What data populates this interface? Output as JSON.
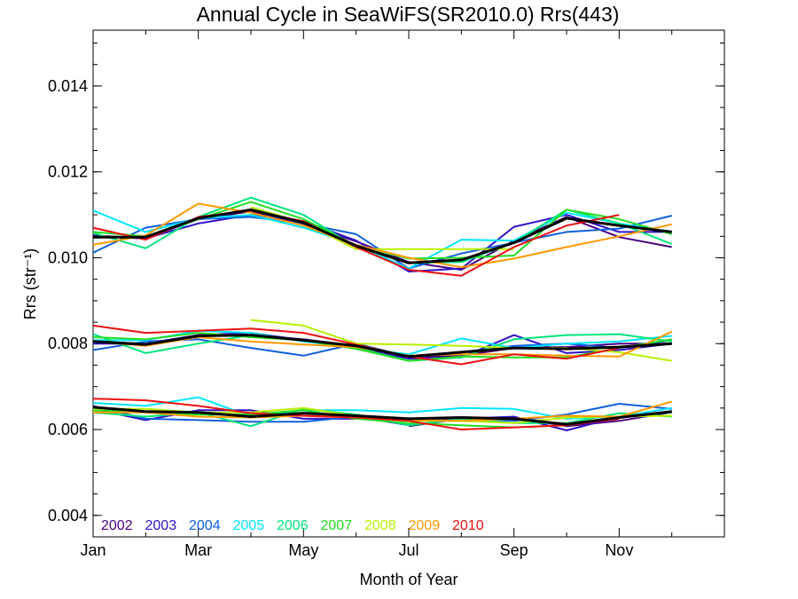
{
  "chart_data": {
    "type": "line",
    "title": "Annual Cycle in SeaWiFS(SR2010.0) Rrs(443)",
    "xlabel": "Month of Year",
    "ylabel": "Rrs (str⁻¹)",
    "xlim": [
      1,
      13
    ],
    "ylim": [
      0.0035,
      0.0153
    ],
    "x_ticks": [
      {
        "value": 1,
        "label": "Jan"
      },
      {
        "value": 3,
        "label": "Mar"
      },
      {
        "value": 5,
        "label": "May"
      },
      {
        "value": 7,
        "label": "Jul"
      },
      {
        "value": 9,
        "label": "Sep"
      },
      {
        "value": 11,
        "label": "Nov"
      }
    ],
    "x_minor_ticks": [
      2,
      4,
      6,
      8,
      10,
      12,
      13
    ],
    "y_ticks": [
      {
        "value": 0.004,
        "label": "0.004"
      },
      {
        "value": 0.006,
        "label": "0.006"
      },
      {
        "value": 0.008,
        "label": "0.008"
      },
      {
        "value": 0.01,
        "label": "0.010"
      },
      {
        "value": 0.012,
        "label": "0.012"
      },
      {
        "value": 0.014,
        "label": "0.014"
      }
    ],
    "y_minor_step": 0.0005,
    "x": [
      1,
      2,
      3,
      4,
      5,
      6,
      7,
      8,
      9,
      10,
      11,
      12
    ],
    "legend_position": "bottom-left",
    "series": [
      {
        "name": "2002",
        "color": "#4b0082",
        "groups": [
          [
            0.01052,
            0.01045,
            0.0109,
            0.01108,
            0.01078,
            0.01038,
            0.0099,
            0.00972,
            0.0104,
            0.01095,
            0.01048,
            0.01025
          ],
          [
            0.00805,
            0.008,
            0.0082,
            0.0082,
            0.0081,
            0.00795,
            0.00768,
            0.00772,
            0.0079,
            0.00792,
            0.008,
            0.008
          ],
          [
            null,
            null,
            null,
            null,
            null,
            null,
            0.00608,
            0.00625,
            0.00628,
            0.00608,
            0.0062,
            0.0064
          ]
        ]
      },
      {
        "name": "2003",
        "color": "#3010cc",
        "groups": [
          [
            0.0105,
            0.01045,
            0.0108,
            0.011,
            0.01085,
            0.0104,
            0.00968,
            0.00975,
            0.01072,
            0.011,
            0.0106,
            0.0106
          ],
          [
            0.008,
            0.008,
            0.0082,
            0.00825,
            0.00808,
            0.0079,
            0.00765,
            0.00768,
            0.0082,
            0.00778,
            0.00785,
            0.008
          ],
          [
            0.00648,
            0.00622,
            0.00645,
            0.00645,
            0.00625,
            0.00625,
            0.00625,
            0.00625,
            0.0063,
            0.00598,
            0.0063,
            0.0064
          ]
        ]
      },
      {
        "name": "2004",
        "color": "#1060e0",
        "groups": [
          [
            0.01012,
            0.0107,
            0.0109,
            0.01095,
            0.0108,
            0.01055,
            0.00975,
            0.0101,
            0.01035,
            0.0106,
            0.01068,
            0.01098
          ],
          [
            0.00785,
            0.00805,
            0.0081,
            0.0079,
            0.00772,
            0.008,
            0.0077,
            0.0078,
            0.00795,
            0.008,
            0.0079,
            0.00808
          ],
          [
            0.00655,
            0.00625,
            0.00622,
            0.00618,
            0.00618,
            0.0063,
            0.0061,
            0.00625,
            0.0062,
            0.00635,
            0.0066,
            0.00648
          ]
        ]
      },
      {
        "name": "2005",
        "color": "#00e5ff",
        "groups": [
          [
            0.0111,
            0.0106,
            0.01092,
            0.011,
            0.0107,
            0.0103,
            0.00975,
            0.01042,
            0.0104,
            0.01105,
            0.0108,
            0.0106
          ],
          [
            0.00808,
            0.00808,
            0.0083,
            0.00825,
            0.00805,
            0.0079,
            0.00775,
            0.00812,
            0.0079,
            0.008,
            0.00805,
            0.00818
          ],
          [
            0.00662,
            0.00655,
            0.00675,
            0.0063,
            0.00645,
            0.00645,
            0.0064,
            0.0065,
            0.00648,
            0.00625,
            0.0063,
            0.0065
          ]
        ]
      },
      {
        "name": "2006",
        "color": "#00e57a",
        "groups": [
          [
            0.01058,
            0.01022,
            0.01095,
            0.0114,
            0.011,
            0.01025,
            0.00988,
            0.0099,
            0.01035,
            0.01112,
            0.0108,
            0.01032
          ],
          [
            0.00822,
            0.00778,
            0.008,
            0.0082,
            0.00808,
            0.0079,
            0.0076,
            0.00768,
            0.0081,
            0.0082,
            0.00822,
            0.00805
          ],
          [
            0.0064,
            0.0063,
            0.0064,
            0.00608,
            0.00648,
            0.00635,
            0.0061,
            0.00625,
            0.00615,
            0.00615,
            0.00638,
            0.0063
          ]
        ]
      },
      {
        "name": "2007",
        "color": "#22dd22",
        "groups": [
          [
            0.0106,
            0.0105,
            0.0109,
            0.0113,
            0.0109,
            0.01028,
            0.00998,
            0.01,
            0.01005,
            0.01112,
            0.0109,
            0.01055
          ],
          [
            0.00815,
            0.0081,
            0.00825,
            0.00815,
            0.00808,
            0.00788,
            0.0076,
            0.0077,
            0.00768,
            0.00768,
            0.0079,
            0.0081
          ],
          [
            0.00645,
            0.0064,
            0.00635,
            0.00635,
            0.00645,
            0.00625,
            0.00615,
            0.0061,
            0.00605,
            0.0061,
            0.0063,
            0.0064
          ]
        ]
      },
      {
        "name": "2008",
        "color": "#b8f000",
        "groups": [
          [
            null,
            null,
            null,
            0.01118,
            0.01082,
            0.0102,
            0.0102,
            0.0102,
            0.0102,
            null,
            null,
            null
          ],
          [
            null,
            null,
            null,
            0.00855,
            0.00842,
            0.008,
            0.00798,
            0.00795,
            0.0079,
            0.0079,
            0.0078,
            0.0076
          ],
          [
            0.00648,
            0.00648,
            0.0064,
            0.0064,
            0.0065,
            0.00632,
            0.0062,
            0.0062,
            0.00615,
            0.00628,
            0.0063,
            0.00632
          ]
        ]
      },
      {
        "name": "2009",
        "color": "#ff9900",
        "groups": [
          [
            0.0103,
            0.01052,
            0.01126,
            0.01105,
            0.01075,
            0.0103,
            0.01,
            0.00978,
            0.00998,
            0.01025,
            0.0105,
            0.01078
          ],
          [
            0.00805,
            0.00795,
            0.00815,
            0.00805,
            0.00798,
            0.00792,
            0.00772,
            0.00775,
            0.00775,
            0.00772,
            0.0077,
            0.00828
          ],
          [
            0.0064,
            0.0064,
            0.0063,
            0.00628,
            0.00632,
            0.00628,
            0.00622,
            0.0062,
            0.00625,
            0.00632,
            0.0063,
            0.00665
          ]
        ]
      },
      {
        "name": "2010",
        "color": "#ee1111",
        "groups": [
          [
            0.0107,
            0.01042,
            0.01095,
            0.0111,
            0.01085,
            0.01025,
            0.00972,
            0.00958,
            0.01025,
            0.01075,
            0.011,
            null
          ],
          [
            0.00842,
            0.00825,
            0.0083,
            0.00835,
            0.00825,
            0.00798,
            0.0077,
            0.00752,
            0.00775,
            0.00765,
            0.0079,
            null
          ],
          [
            0.00672,
            0.00668,
            0.00655,
            0.00638,
            0.00632,
            0.00628,
            0.0062,
            0.006,
            0.00605,
            0.0061,
            0.00625,
            null
          ]
        ]
      },
      {
        "name": "",
        "color": "#000000",
        "mean": true,
        "groups": [
          [
            0.01048,
            0.01048,
            0.01092,
            0.01112,
            0.01082,
            0.01028,
            0.00988,
            0.00995,
            0.01035,
            0.01092,
            0.01075,
            0.0106
          ],
          [
            0.00805,
            0.00798,
            0.00818,
            0.0082,
            0.00808,
            0.00795,
            0.0077,
            0.0078,
            0.0079,
            0.00788,
            0.00792,
            0.008
          ],
          [
            0.00652,
            0.00642,
            0.0064,
            0.0063,
            0.00638,
            0.00632,
            0.00625,
            0.00628,
            0.00625,
            0.00612,
            0.00628,
            0.00642
          ]
        ]
      }
    ]
  }
}
